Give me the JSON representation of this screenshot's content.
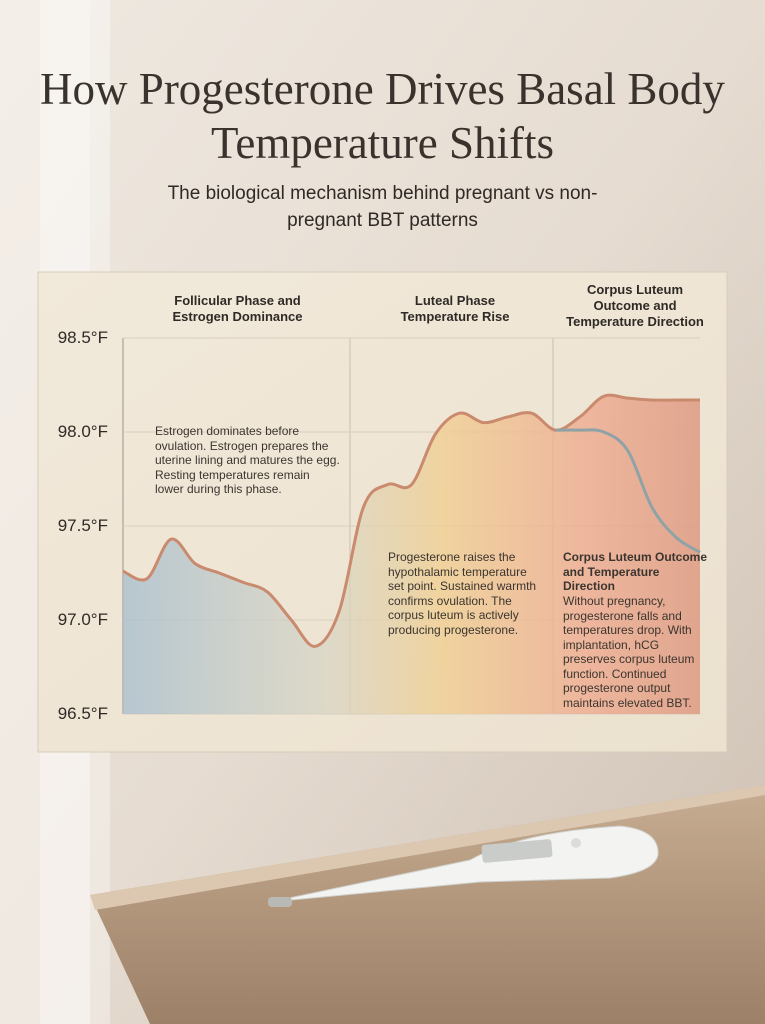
{
  "title": "How Progesterone Drives Basal Body Temperature Shifts",
  "subtitle": "The biological mechanism behind pregnant vs non-pregnant BBT patterns",
  "chart_data": {
    "type": "area",
    "phases": [
      {
        "heading": "Follicular Phase and Estrogen Dominance",
        "note": "Estrogen dominates before ovulation. Estrogen prepares the uterine lining and matures the egg. Resting temperatures remain lower during this phase."
      },
      {
        "heading": "Luteal Phase Temperature Rise",
        "note": "Progesterone raises the hypothalamic temperature set point. Sustained warmth confirms ovulation. The corpus luteum is actively producing progesterone."
      },
      {
        "heading": "Corpus Luteum Outcome and Temperature Direction",
        "note_heading": "Corpus Luteum Outcome and Temperature Direction",
        "note": "Without pregnancy, progesterone falls and temperatures drop. With implantation, hCG preserves corpus luteum function. Continued progesterone output maintains elevated BBT."
      }
    ],
    "categories": [
      null,
      null,
      null,
      null,
      null,
      null,
      null,
      null,
      null,
      null,
      null,
      null,
      null,
      null,
      null,
      null,
      null,
      null,
      null,
      null,
      null,
      null,
      null,
      null,
      null
    ],
    "series": [
      {
        "color": "#c98a6e",
        "values": [
          97.26,
          97.22,
          97.43,
          97.3,
          97.25,
          97.2,
          97.15,
          97.0,
          96.86,
          97.05,
          97.6,
          97.72,
          97.72,
          97.99,
          98.1,
          98.05,
          98.08,
          98.1,
          98.01,
          98.08,
          98.19,
          98.18,
          98.17,
          98.17,
          98.17
        ]
      },
      {
        "color": "#8fa3a6",
        "values": [
          null,
          null,
          null,
          null,
          null,
          null,
          null,
          null,
          null,
          null,
          null,
          null,
          null,
          null,
          null,
          null,
          null,
          null,
          98.01,
          98.01,
          98.0,
          97.9,
          97.6,
          97.44,
          97.36
        ]
      }
    ],
    "ylim": [
      96.5,
      98.5
    ],
    "yticks": [
      {
        "value": 96.5,
        "label": "96.5°F"
      },
      {
        "value": 97.0,
        "label": "97.0°F"
      },
      {
        "value": 97.5,
        "label": "97.5°F"
      },
      {
        "value": 98.0,
        "label": "98.0°F"
      },
      {
        "value": 98.5,
        "label": "98.5°F"
      }
    ],
    "grid": true
  }
}
